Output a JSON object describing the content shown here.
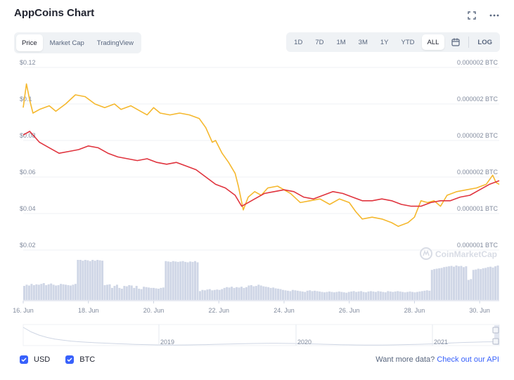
{
  "header": {
    "title": "AppCoins Chart",
    "icons": [
      "fullscreen-icon",
      "more-icon"
    ]
  },
  "view_tabs": [
    {
      "label": "Price",
      "active": true
    },
    {
      "label": "Market Cap",
      "active": false
    },
    {
      "label": "TradingView",
      "active": false
    }
  ],
  "range_tabs": [
    {
      "label": "1D",
      "active": false
    },
    {
      "label": "7D",
      "active": false
    },
    {
      "label": "1M",
      "active": false
    },
    {
      "label": "3M",
      "active": false
    },
    {
      "label": "1Y",
      "active": false
    },
    {
      "label": "YTD",
      "active": false
    },
    {
      "label": "ALL",
      "active": true
    }
  ],
  "log_label": "LOG",
  "watermark": "CoinMarketCap",
  "colors": {
    "usd": "#f5b82e",
    "btc": "#e0343e",
    "volume": "#cfd6e6",
    "grid": "#eff2f5",
    "accent": "#3861fb"
  },
  "chart_data": {
    "type": "line",
    "x_labels": [
      "16. Jun",
      "18. Jun",
      "20. Jun",
      "22. Jun",
      "24. Jun",
      "26. Jun",
      "28. Jun",
      "30. Jun"
    ],
    "x_range": [
      16.0,
      30.6
    ],
    "y_left": {
      "tick_labels": [
        "$0.12",
        "$0.1",
        "$0.08",
        "$0.06",
        "$0.04",
        "$0.02"
      ],
      "ticks": [
        0.12,
        0.1,
        0.08,
        0.06,
        0.04,
        0.02
      ],
      "range": [
        0.02,
        0.12
      ]
    },
    "y_right": {
      "tick_labels": [
        "0.000002 BTC",
        "0.000002 BTC",
        "0.000002 BTC",
        "0.000002 BTC",
        "0.000001 BTC",
        "0.000001 BTC"
      ]
    },
    "series": [
      {
        "name": "USD",
        "x": [
          16.0,
          16.1,
          16.2,
          16.3,
          16.5,
          16.8,
          17.0,
          17.3,
          17.6,
          17.9,
          18.2,
          18.5,
          18.8,
          19.0,
          19.3,
          19.6,
          19.8,
          20.0,
          20.2,
          20.5,
          20.8,
          21.1,
          21.4,
          21.6,
          21.8,
          21.9,
          22.1,
          22.3,
          22.5,
          22.6,
          22.75,
          22.9,
          23.1,
          23.3,
          23.5,
          23.8,
          24.2,
          24.5,
          24.8,
          25.1,
          25.4,
          25.7,
          26.0,
          26.2,
          26.4,
          26.7,
          27.0,
          27.3,
          27.5,
          27.8,
          28.0,
          28.2,
          28.4,
          28.6,
          28.8,
          29.0,
          29.3,
          29.6,
          29.9,
          30.2,
          30.4,
          30.5,
          30.6
        ],
        "values": [
          0.098,
          0.111,
          0.102,
          0.095,
          0.097,
          0.099,
          0.096,
          0.1,
          0.105,
          0.104,
          0.1,
          0.098,
          0.1,
          0.097,
          0.099,
          0.096,
          0.094,
          0.098,
          0.095,
          0.094,
          0.095,
          0.094,
          0.092,
          0.087,
          0.079,
          0.08,
          0.073,
          0.068,
          0.062,
          0.055,
          0.042,
          0.049,
          0.052,
          0.05,
          0.054,
          0.055,
          0.051,
          0.046,
          0.047,
          0.048,
          0.045,
          0.048,
          0.046,
          0.041,
          0.037,
          0.038,
          0.037,
          0.035,
          0.033,
          0.035,
          0.038,
          0.047,
          0.046,
          0.047,
          0.044,
          0.05,
          0.052,
          0.053,
          0.054,
          0.056,
          0.061,
          0.057,
          0.056
        ]
      },
      {
        "name": "BTC",
        "x": [
          16.0,
          16.2,
          16.5,
          16.8,
          17.1,
          17.4,
          17.7,
          18.0,
          18.3,
          18.6,
          18.9,
          19.2,
          19.5,
          19.8,
          20.1,
          20.4,
          20.7,
          21.0,
          21.3,
          21.6,
          21.9,
          22.2,
          22.5,
          22.7,
          22.9,
          23.1,
          23.4,
          23.7,
          24.0,
          24.3,
          24.6,
          24.9,
          25.2,
          25.5,
          25.8,
          26.1,
          26.4,
          26.7,
          27.0,
          27.3,
          27.6,
          27.9,
          28.2,
          28.5,
          28.8,
          29.1,
          29.4,
          29.7,
          30.0,
          30.3,
          30.6
        ],
        "values": [
          0.083,
          0.085,
          0.079,
          0.076,
          0.073,
          0.074,
          0.075,
          0.077,
          0.076,
          0.073,
          0.071,
          0.07,
          0.069,
          0.07,
          0.068,
          0.067,
          0.068,
          0.066,
          0.064,
          0.06,
          0.056,
          0.054,
          0.05,
          0.044,
          0.046,
          0.048,
          0.051,
          0.052,
          0.053,
          0.052,
          0.049,
          0.048,
          0.05,
          0.052,
          0.051,
          0.049,
          0.047,
          0.047,
          0.048,
          0.047,
          0.045,
          0.044,
          0.044,
          0.046,
          0.047,
          0.047,
          0.049,
          0.05,
          0.053,
          0.056,
          0.058
        ]
      }
    ],
    "volume_heights": [
      0.35,
      0.38,
      0.36,
      0.4,
      0.37,
      0.39,
      0.38,
      0.4,
      0.42,
      0.37,
      0.39,
      0.41,
      0.38,
      0.36,
      0.37,
      0.4,
      0.39,
      0.38,
      0.37,
      0.36,
      0.38,
      0.4,
      1.0,
      1.0,
      0.98,
      1.0,
      0.99,
      0.97,
      1.0,
      0.98,
      1.0,
      0.99,
      0.98,
      0.37,
      0.38,
      0.39,
      0.3,
      0.35,
      0.38,
      0.3,
      0.28,
      0.35,
      0.34,
      0.37,
      0.36,
      0.3,
      0.35,
      0.28,
      0.27,
      0.33,
      0.32,
      0.31,
      0.3,
      0.3,
      0.29,
      0.28,
      0.3,
      0.31,
      0.97,
      0.96,
      0.95,
      0.97,
      0.96,
      0.95,
      0.96,
      0.97,
      0.95,
      0.94,
      0.96,
      0.95,
      0.97,
      0.94,
      0.22,
      0.25,
      0.24,
      0.26,
      0.27,
      0.24,
      0.25,
      0.26,
      0.25,
      0.27,
      0.3,
      0.32,
      0.31,
      0.33,
      0.3,
      0.32,
      0.31,
      0.33,
      0.3,
      0.32,
      0.36,
      0.37,
      0.34,
      0.35,
      0.38,
      0.36,
      0.34,
      0.33,
      0.32,
      0.3,
      0.31,
      0.29,
      0.28,
      0.27,
      0.25,
      0.24,
      0.23,
      0.22,
      0.25,
      0.24,
      0.23,
      0.22,
      0.21,
      0.2,
      0.23,
      0.24,
      0.22,
      0.23,
      0.22,
      0.21,
      0.2,
      0.19,
      0.2,
      0.21,
      0.2,
      0.19,
      0.2,
      0.21,
      0.2,
      0.19,
      0.18,
      0.2,
      0.21,
      0.22,
      0.2,
      0.21,
      0.22,
      0.2,
      0.19,
      0.21,
      0.22,
      0.21,
      0.2,
      0.22,
      0.21,
      0.2,
      0.19,
      0.22,
      0.21,
      0.2,
      0.21,
      0.22,
      0.21,
      0.2,
      0.19,
      0.2,
      0.21,
      0.2,
      0.19,
      0.2,
      0.21,
      0.22,
      0.23,
      0.24,
      0.23,
      0.75,
      0.77,
      0.78,
      0.79,
      0.8,
      0.82,
      0.83,
      0.84,
      0.85,
      0.83,
      0.86,
      0.84,
      0.85,
      0.82,
      0.84,
      0.5,
      0.52,
      0.75,
      0.76,
      0.78,
      0.77,
      0.79,
      0.8,
      0.82,
      0.83,
      0.81,
      0.84,
      0.86
    ]
  },
  "navigator": {
    "year_labels": [
      "2019",
      "2020",
      "2021"
    ]
  },
  "legend": [
    {
      "label": "USD",
      "checked": true
    },
    {
      "label": "BTC",
      "checked": true
    }
  ],
  "footer": {
    "prefix": "Want more data?",
    "link": "Check out our API"
  }
}
